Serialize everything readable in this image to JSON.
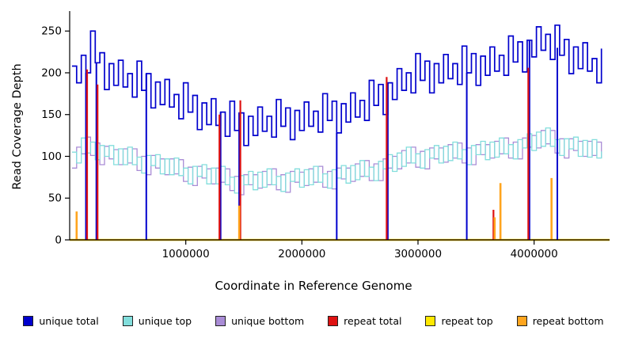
{
  "chart_data": {
    "type": "line",
    "title": "",
    "xlabel": "Coordinate in Reference Genome",
    "ylabel": "Read Coverage Depth",
    "xlim": [
      0,
      4650000
    ],
    "ylim": [
      0,
      272
    ],
    "x_ticks": [
      1000000,
      2000000,
      3000000,
      4000000
    ],
    "x_tick_labels": [
      "1000000",
      "2000000",
      "3000000",
      "4000000"
    ],
    "y_ticks": [
      0,
      50,
      100,
      150,
      200,
      250
    ],
    "grid": "off",
    "legend_position": "bottom",
    "x_start": 20000,
    "x_step": 40000,
    "series": [
      {
        "name": "unique total",
        "color": "#0000CD",
        "values": [
          208,
          188,
          221,
          200,
          250,
          212,
          224,
          180,
          211,
          185,
          215,
          183,
          199,
          171,
          214,
          179,
          199,
          158,
          189,
          162,
          192,
          159,
          174,
          145,
          188,
          153,
          173,
          132,
          164,
          138,
          169,
          137,
          153,
          124,
          166,
          131,
          152,
          113,
          148,
          125,
          159,
          130,
          148,
          123,
          168,
          136,
          158,
          120,
          155,
          131,
          165,
          136,
          154,
          129,
          175,
          143,
          166,
          128,
          163,
          141,
          176,
          147,
          167,
          143,
          191,
          161,
          186,
          150,
          188,
          168,
          205,
          179,
          200,
          176,
          223,
          191,
          214,
          176,
          211,
          188,
          222,
          193,
          211,
          186,
          232,
          200,
          223,
          185,
          220,
          197,
          231,
          202,
          221,
          197,
          244,
          213,
          237,
          201,
          239,
          219,
          255,
          227,
          246,
          216,
          257,
          221,
          240,
          199,
          231,
          205,
          236,
          202,
          217,
          188,
          229
        ]
      },
      {
        "name": "unique top",
        "color": "#82DEDC",
        "values": [
          105,
          92,
          122,
          104,
          117,
          96,
          113,
          100,
          113,
          90,
          109,
          90,
          111,
          90,
          99,
          80,
          101,
          89,
          102,
          79,
          97,
          78,
          98,
          77,
          86,
          67,
          88,
          76,
          90,
          67,
          86,
          67,
          88,
          66,
          75,
          56,
          77,
          66,
          82,
          60,
          81,
          63,
          85,
          66,
          76,
          58,
          80,
          70,
          85,
          63,
          84,
          66,
          88,
          69,
          79,
          62,
          84,
          74,
          89,
          68,
          89,
          72,
          95,
          76,
          87,
          71,
          94,
          85,
          102,
          82,
          104,
          88,
          111,
          92,
          103,
          86,
          108,
          98,
          113,
          92,
          112,
          95,
          117,
          97,
          108,
          90,
          113,
          102,
          118,
          96,
          117,
          99,
          122,
          103,
          114,
          97,
          120,
          110,
          127,
          107,
          129,
          112,
          134,
          112,
          120,
          101,
          121,
          109,
          123,
          100,
          119,
          99,
          120,
          98,
          106
        ]
      },
      {
        "name": "unique bottom",
        "color": "#A98CD6",
        "values": [
          86,
          111,
          103,
          123,
          101,
          116,
          90,
          112,
          97,
          108,
          90,
          109,
          92,
          109,
          83,
          100,
          78,
          101,
          86,
          97,
          78,
          97,
          79,
          96,
          70,
          87,
          65,
          88,
          74,
          85,
          67,
          86,
          69,
          85,
          59,
          76,
          54,
          78,
          66,
          78,
          62,
          82,
          66,
          85,
          60,
          78,
          57,
          82,
          69,
          81,
          65,
          85,
          69,
          88,
          63,
          82,
          61,
          86,
          73,
          86,
          70,
          91,
          76,
          95,
          71,
          91,
          71,
          97,
          86,
          100,
          85,
          107,
          92,
          111,
          87,
          106,
          85,
          110,
          97,
          110,
          93,
          114,
          98,
          116,
          92,
          110,
          90,
          114,
          102,
          114,
          98,
          118,
          103,
          122,
          98,
          117,
          97,
          122,
          111,
          125,
          110,
          131,
          115,
          131,
          104,
          121,
          98,
          121,
          107,
          118,
          100,
          118,
          101,
          117,
          98
        ]
      },
      {
        "name": "repeat total",
        "color": "#DE1212",
        "baseline": 0,
        "spikes": [
          [
            150000,
            204
          ],
          [
            240000,
            186
          ],
          [
            1290000,
            150
          ],
          [
            1470000,
            167
          ],
          [
            2730000,
            195
          ],
          [
            3650000,
            36
          ],
          [
            3950000,
            206
          ]
        ]
      },
      {
        "name": "repeat top",
        "color": "#FFE800",
        "baseline": 0,
        "spikes": []
      },
      {
        "name": "repeat bottom",
        "color": "#FFA51E",
        "baseline": 0,
        "spikes": [
          [
            60000,
            34
          ],
          [
            1460000,
            41
          ],
          [
            3660000,
            27
          ],
          [
            3710000,
            68
          ],
          [
            4150000,
            74
          ]
        ]
      }
    ],
    "dropouts": [
      [
        140000,
        200
      ],
      [
        230000,
        212
      ],
      [
        660000,
        199
      ],
      [
        1300000,
        153
      ],
      [
        1460000,
        152
      ],
      [
        2300000,
        128
      ],
      [
        2740000,
        188
      ],
      [
        3420000,
        200
      ],
      [
        3960000,
        239
      ],
      [
        4200000,
        230
      ]
    ]
  }
}
